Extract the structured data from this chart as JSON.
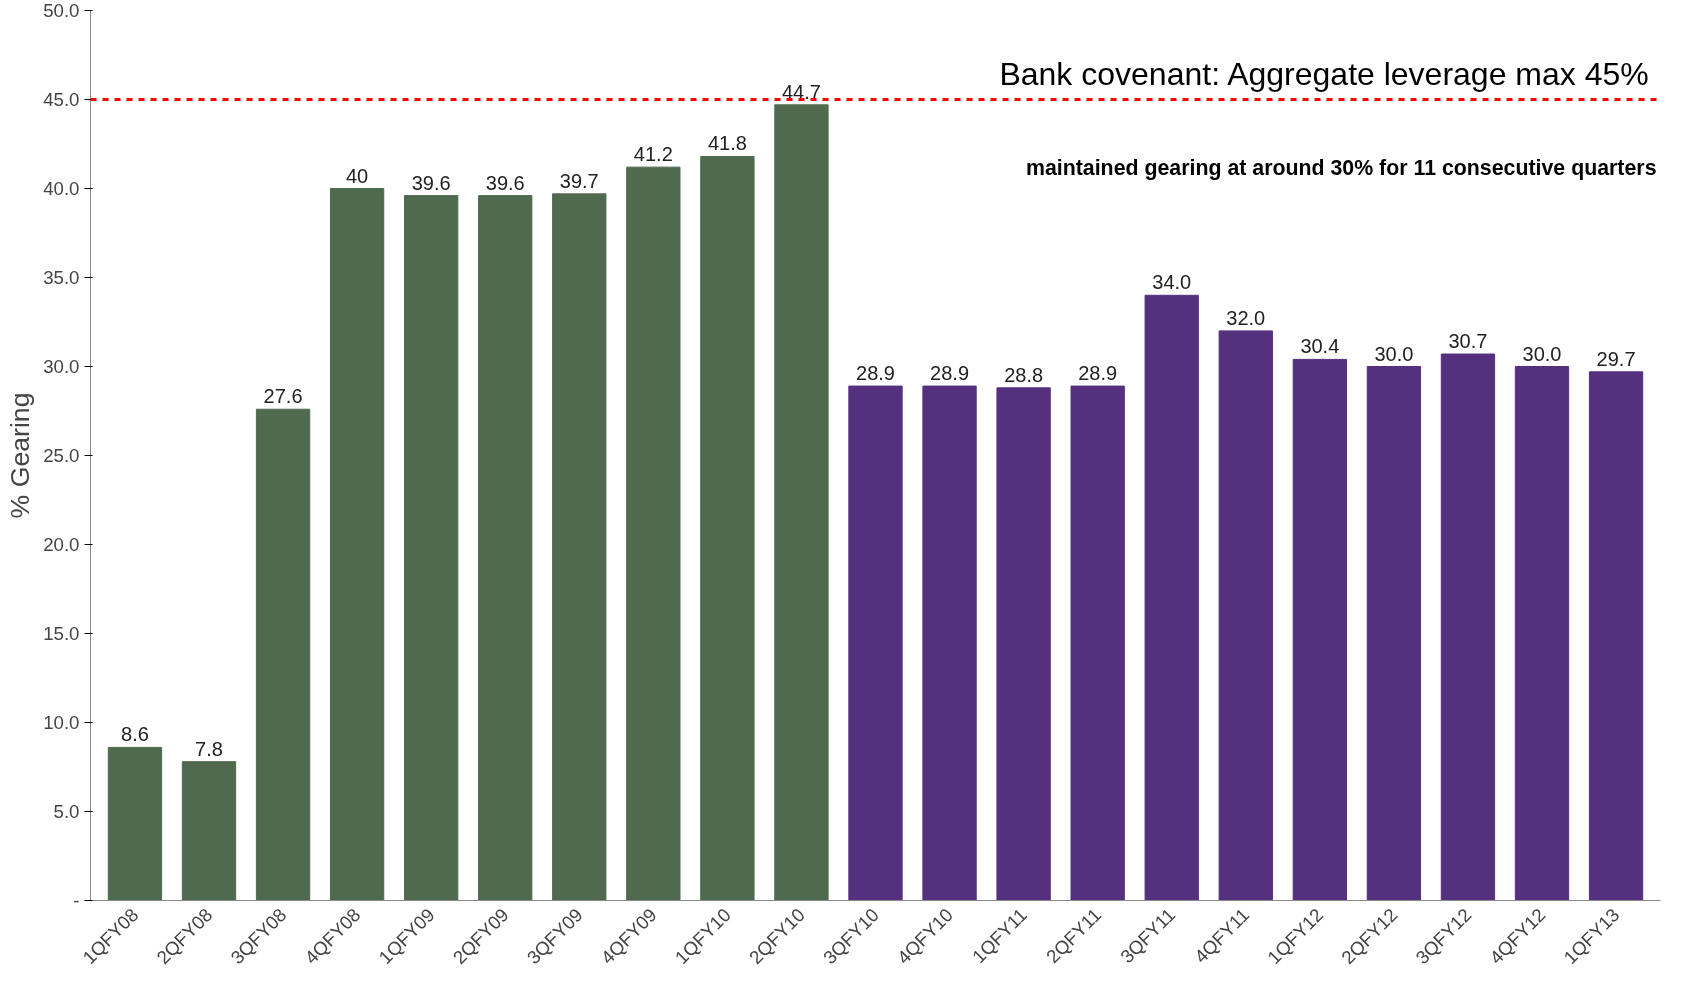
{
  "chart_data": {
    "type": "bar",
    "ylabel": "% Gearing",
    "categories": [
      "1QFY08",
      "2QFY08",
      "3QFY08",
      "4QFY08",
      "1QFY09",
      "2QFY09",
      "3QFY09",
      "4QFY09",
      "1QFY10",
      "2QFY10",
      "3QFY10",
      "4QFY10",
      "1QFY11",
      "2QFY11",
      "3QFY11",
      "4QFY11",
      "1QFY12",
      "2QFY12",
      "3QFY12",
      "4QFY12",
      "1QFY13"
    ],
    "values": [
      8.6,
      7.8,
      27.6,
      40,
      39.6,
      39.6,
      39.7,
      41.2,
      41.8,
      44.7,
      28.9,
      28.9,
      28.8,
      28.9,
      34.0,
      32.0,
      30.4,
      30.0,
      30.7,
      30.0,
      29.7
    ],
    "value_labels": [
      "8.6",
      "7.8",
      "27.6",
      "40",
      "39.6",
      "39.6",
      "39.7",
      "41.2",
      "41.8",
      "44.7",
      "28.9",
      "28.9",
      "28.8",
      "28.9",
      "34.0",
      "32.0",
      "30.4",
      "30.0",
      "30.7",
      "30.0",
      "29.7"
    ],
    "colors": [
      "#4f6a4f",
      "#4f6a4f",
      "#4f6a4f",
      "#4f6a4f",
      "#4f6a4f",
      "#4f6a4f",
      "#4f6a4f",
      "#4f6a4f",
      "#4f6a4f",
      "#4f6a4f",
      "#55307f",
      "#55307f",
      "#55307f",
      "#55307f",
      "#55307f",
      "#55307f",
      "#55307f",
      "#55307f",
      "#55307f",
      "#55307f",
      "#55307f"
    ],
    "ylim": [
      0,
      50
    ],
    "yticks": [
      {
        "value": 0,
        "label": "-"
      },
      {
        "value": 5,
        "label": "5.0"
      },
      {
        "value": 10,
        "label": "10.0"
      },
      {
        "value": 15,
        "label": "15.0"
      },
      {
        "value": 20,
        "label": "20.0"
      },
      {
        "value": 25,
        "label": "25.0"
      },
      {
        "value": 30,
        "label": "30.0"
      },
      {
        "value": 35,
        "label": "35.0"
      },
      {
        "value": 40,
        "label": "40.0"
      },
      {
        "value": 45,
        "label": "45.0"
      },
      {
        "value": 50,
        "label": "50.0"
      }
    ],
    "ref_lines": [
      {
        "axis": "y",
        "value": 45,
        "label": "Bank covenant: Aggregate leverage max 45%",
        "color": "#ff0000",
        "line_style": "dashed"
      }
    ],
    "annotations": [
      "maintained gearing at around 30% for 11 consecutive quarters"
    ],
    "grid": false
  }
}
